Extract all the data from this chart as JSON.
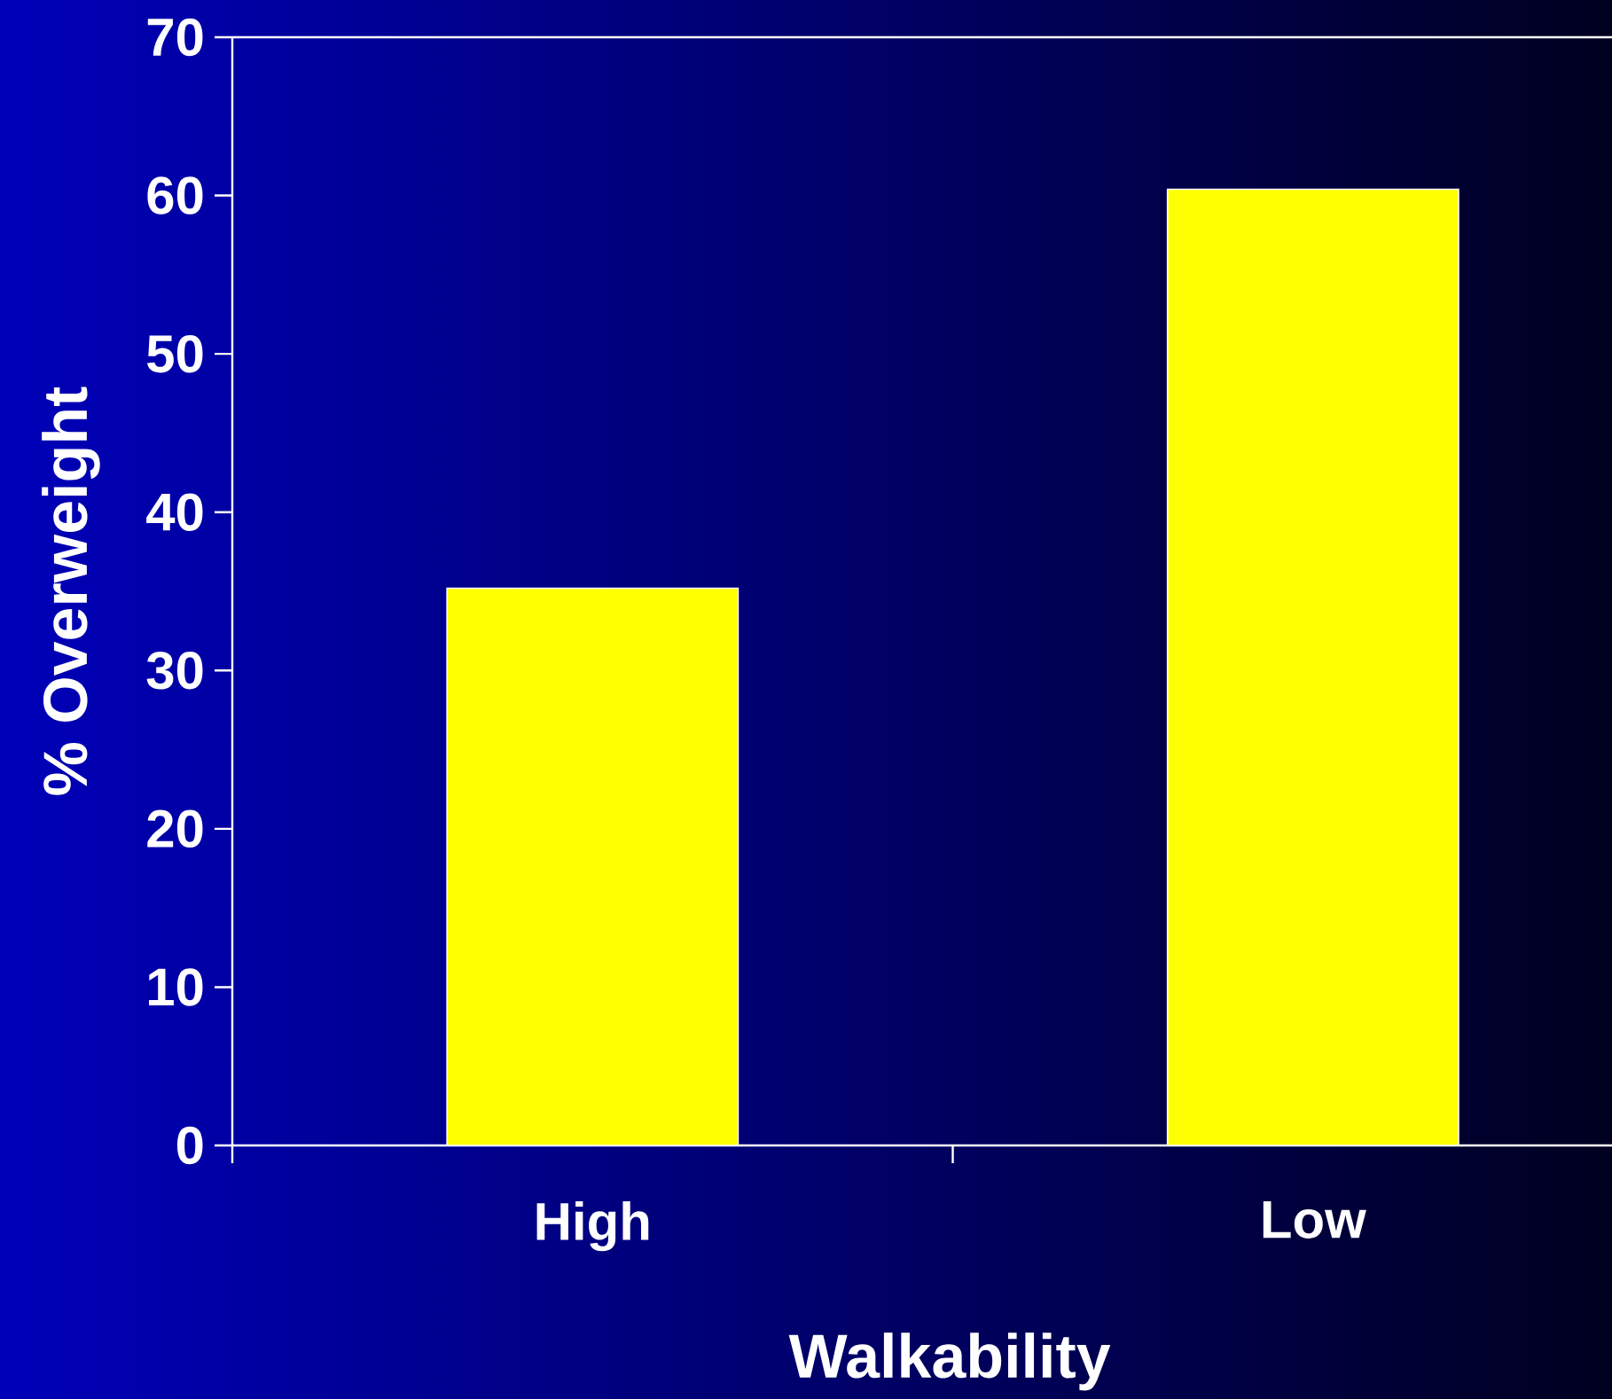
{
  "chart_data": {
    "type": "bar",
    "xlabel": "Walkability",
    "ylabel": "% Overweight",
    "categories": [
      "High",
      "Low"
    ],
    "values": [
      35.2,
      60.4
    ],
    "color": "#ffff00",
    "ylim": [
      0,
      70
    ],
    "yticks": [
      0,
      10,
      20,
      30,
      40,
      50,
      60,
      70
    ],
    "grid": false
  }
}
